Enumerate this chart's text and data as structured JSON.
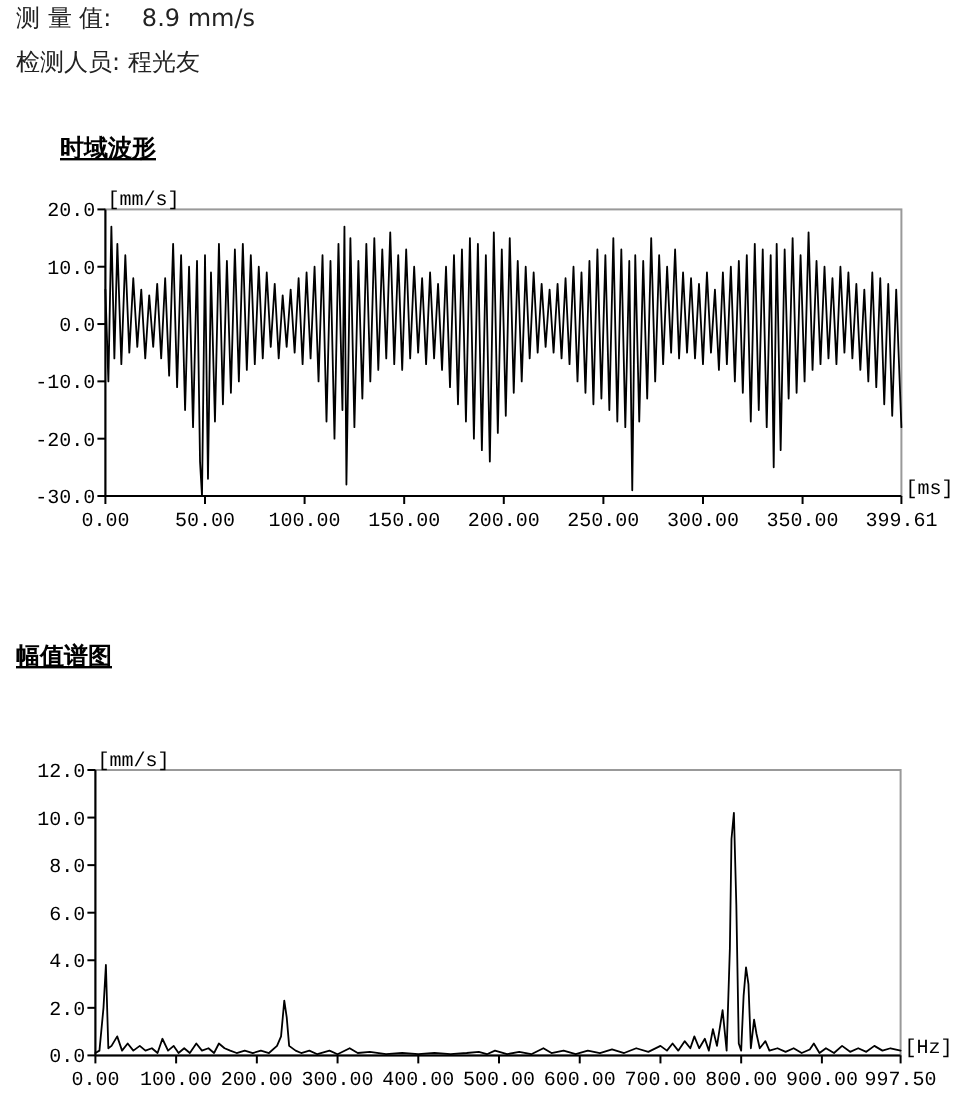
{
  "chart_data": [
    {
      "type": "line",
      "title": "时域波形",
      "xlabel": "[ms]",
      "ylabel": "[mm/s]",
      "annotations": [
        "测 量 值:    8.9 mm/s",
        "检测人员: 程光友"
      ],
      "xlim": [
        0,
        399.61
      ],
      "ylim": [
        -30,
        20
      ],
      "xticks": [
        {
          "value": 0,
          "label": "0.00"
        },
        {
          "value": 50,
          "label": "50.00"
        },
        {
          "value": 100,
          "label": "100.00"
        },
        {
          "value": 150,
          "label": "150.00"
        },
        {
          "value": 200,
          "label": "200.00"
        },
        {
          "value": 250,
          "label": "250.00"
        },
        {
          "value": 300,
          "label": "300.00"
        },
        {
          "value": 350,
          "label": "350.00"
        },
        {
          "value": 399.61,
          "label": "399.61"
        }
      ],
      "yticks": [
        {
          "value": 20,
          "label": "20.0"
        },
        {
          "value": 10,
          "label": "10.0"
        },
        {
          "value": 0,
          "label": "0.0"
        },
        {
          "value": -10,
          "label": "-10.0"
        },
        {
          "value": -20,
          "label": "-20.0"
        },
        {
          "value": -30,
          "label": "-30.0"
        }
      ],
      "series": [
        {
          "color": "#000000",
          "x": [
            0,
            1.5,
            3,
            4.5,
            6,
            8,
            10,
            12,
            14,
            16,
            18,
            20,
            22,
            24,
            26,
            28,
            30,
            32,
            34,
            36,
            38,
            40,
            42,
            44,
            46,
            47.5,
            48.5,
            50,
            51.5,
            53,
            55,
            57,
            59,
            61,
            63,
            65,
            67,
            69,
            71,
            73,
            75,
            77,
            79,
            81,
            83,
            85,
            87,
            89,
            91,
            93,
            95,
            97,
            99,
            101,
            103,
            105,
            107,
            109,
            111,
            113,
            115,
            117,
            119,
            120,
            121,
            123,
            125,
            127,
            129,
            131,
            133,
            135,
            137,
            139,
            141,
            143,
            145,
            147,
            149,
            151,
            153,
            155,
            157,
            159,
            161,
            163,
            165,
            167,
            169,
            171,
            173,
            175,
            177,
            179,
            181,
            183,
            185,
            187,
            189,
            191,
            193,
            195,
            197,
            199,
            201,
            203,
            205,
            207,
            209,
            211,
            213,
            215,
            217,
            219,
            221,
            223,
            225,
            227,
            229,
            231,
            233,
            235,
            237,
            239,
            241,
            243,
            245,
            247,
            249,
            251,
            253,
            255,
            257,
            259,
            261,
            263,
            264.5,
            266,
            268,
            270,
            272,
            274,
            276,
            278,
            280,
            282,
            284,
            286,
            288,
            290,
            292,
            294,
            296,
            298,
            300,
            302,
            304,
            306,
            308,
            310,
            312,
            314,
            316,
            318,
            320,
            322,
            324,
            326,
            328,
            330,
            332,
            334,
            335.5,
            337,
            339,
            341,
            343,
            345,
            347,
            349,
            351,
            353,
            355,
            357,
            359,
            361,
            363,
            365,
            367,
            369,
            371,
            373,
            375,
            377,
            379,
            381,
            383,
            385,
            387,
            389,
            391,
            393,
            395,
            397,
            399.61
          ],
          "values": [
            6,
            -10,
            17,
            -6,
            14,
            -7,
            12,
            -5,
            8,
            -4,
            6,
            -6,
            5,
            -4,
            7,
            -6,
            8,
            -9,
            14,
            -11,
            12,
            -15,
            10,
            -18,
            11,
            -24,
            -30,
            12,
            -27,
            9,
            -17,
            14,
            -14,
            11,
            -12,
            13,
            -10,
            14,
            -8,
            12,
            -7,
            10,
            -6,
            9,
            -4,
            7,
            -6,
            5,
            -4,
            6,
            -5,
            8,
            -7,
            9,
            -6,
            10,
            -10,
            12,
            -17,
            11,
            -20,
            14,
            -15,
            17,
            -28,
            15,
            -18,
            11,
            -13,
            14,
            -10,
            15,
            -8,
            13,
            -6,
            16,
            -7,
            12,
            -8,
            13,
            -6,
            10,
            -5,
            8,
            -7,
            9,
            -6,
            7,
            -8,
            10,
            -11,
            12,
            -14,
            13,
            -17,
            15,
            -20,
            14,
            -22,
            12,
            -24,
            16,
            -19,
            13,
            -16,
            15,
            -12,
            11,
            -10,
            10,
            -6,
            9,
            -5,
            7,
            -4,
            6,
            -5,
            7,
            -6,
            8,
            -7,
            10,
            -10,
            9,
            -12,
            11,
            -14,
            13,
            -13,
            12,
            -15,
            15,
            -17,
            13,
            -18,
            11,
            -29,
            12,
            -17,
            11,
            -13,
            15,
            -10,
            12,
            -7,
            10,
            -5,
            13,
            -6,
            9,
            -5,
            8,
            -6,
            7,
            -7,
            9,
            -5,
            6,
            -8,
            9,
            -7,
            10,
            -10,
            11,
            -12,
            12,
            -17,
            14,
            -15,
            13,
            -18,
            12,
            -25,
            14,
            -22,
            13,
            -13,
            15,
            -12,
            12,
            -10,
            16,
            -8,
            11,
            -7,
            10,
            -6,
            8,
            -7,
            10,
            -5,
            9,
            -6,
            7,
            -8,
            6,
            -10,
            9,
            -11,
            8,
            -14,
            7,
            -16,
            6,
            -18
          ]
        }
      ]
    },
    {
      "type": "line",
      "title": "幅值谱图",
      "xlabel": "[Hz]",
      "ylabel": "[mm/s]",
      "xlim": [
        0,
        997.5
      ],
      "ylim": [
        0,
        12
      ],
      "xticks": [
        {
          "value": 0,
          "label": "0.00"
        },
        {
          "value": 100,
          "label": "100.00"
        },
        {
          "value": 200,
          "label": "200.00"
        },
        {
          "value": 300,
          "label": "300.00"
        },
        {
          "value": 400,
          "label": "400.00"
        },
        {
          "value": 500,
          "label": "500.00"
        },
        {
          "value": 600,
          "label": "600.00"
        },
        {
          "value": 700,
          "label": "700.00"
        },
        {
          "value": 800,
          "label": "800.00"
        },
        {
          "value": 900,
          "label": "900.00"
        },
        {
          "value": 997.5,
          "label": "997.50"
        }
      ],
      "yticks": [
        {
          "value": 12,
          "label": "12.0"
        },
        {
          "value": 10,
          "label": "10.0"
        },
        {
          "value": 8,
          "label": "8.0"
        },
        {
          "value": 6,
          "label": "6.0"
        },
        {
          "value": 4,
          "label": "4.0"
        },
        {
          "value": 2,
          "label": "2.0"
        },
        {
          "value": 0,
          "label": "0.0"
        }
      ],
      "series": [
        {
          "color": "#000000",
          "x": [
            0,
            5,
            10,
            13,
            16,
            20,
            27,
            33,
            40,
            47,
            55,
            62,
            70,
            77,
            83,
            90,
            97,
            103,
            110,
            117,
            125,
            132,
            140,
            147,
            153,
            160,
            167,
            175,
            185,
            195,
            205,
            215,
            225,
            230,
            234,
            237,
            240,
            248,
            255,
            265,
            275,
            290,
            300,
            315,
            325,
            340,
            360,
            380,
            400,
            420,
            440,
            460,
            475,
            485,
            495,
            510,
            525,
            540,
            555,
            565,
            580,
            595,
            610,
            625,
            640,
            655,
            670,
            685,
            700,
            708,
            715,
            722,
            730,
            737,
            742,
            748,
            755,
            760,
            765,
            770,
            777,
            782,
            786,
            788,
            791,
            794,
            797,
            800,
            803,
            806,
            809,
            812,
            816,
            819,
            823,
            830,
            835,
            845,
            855,
            865,
            875,
            885,
            890,
            897,
            905,
            915,
            925,
            935,
            945,
            955,
            965,
            975,
            985,
            997.5
          ],
          "values": [
            0.1,
            0.2,
            2.0,
            3.8,
            0.3,
            0.4,
            0.8,
            0.2,
            0.5,
            0.2,
            0.4,
            0.2,
            0.3,
            0.1,
            0.7,
            0.2,
            0.4,
            0.1,
            0.3,
            0.1,
            0.5,
            0.2,
            0.3,
            0.1,
            0.5,
            0.3,
            0.2,
            0.1,
            0.2,
            0.1,
            0.2,
            0.1,
            0.4,
            0.8,
            2.3,
            1.6,
            0.4,
            0.2,
            0.1,
            0.2,
            0.05,
            0.2,
            0.05,
            0.3,
            0.1,
            0.15,
            0.05,
            0.1,
            0.05,
            0.1,
            0.05,
            0.1,
            0.15,
            0.05,
            0.2,
            0.05,
            0.15,
            0.05,
            0.3,
            0.1,
            0.2,
            0.05,
            0.2,
            0.1,
            0.25,
            0.1,
            0.3,
            0.15,
            0.4,
            0.2,
            0.5,
            0.2,
            0.6,
            0.3,
            0.8,
            0.3,
            0.7,
            0.2,
            1.1,
            0.4,
            1.9,
            0.2,
            4.5,
            9.1,
            10.2,
            6.3,
            0.5,
            0.2,
            2.5,
            3.7,
            3.0,
            0.3,
            1.5,
            0.9,
            0.3,
            0.6,
            0.2,
            0.3,
            0.15,
            0.3,
            0.1,
            0.25,
            0.5,
            0.1,
            0.3,
            0.1,
            0.4,
            0.15,
            0.3,
            0.15,
            0.4,
            0.2,
            0.3,
            0.2
          ]
        }
      ]
    }
  ]
}
